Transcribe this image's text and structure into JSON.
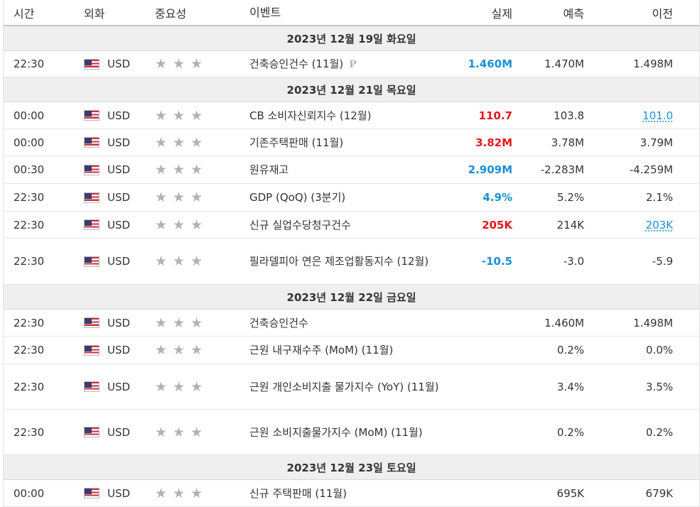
{
  "headers": {
    "time": "시간",
    "currency": "외화",
    "importance": "중요성",
    "event": "이벤트",
    "actual": "실제",
    "forecast": "예측",
    "previous": "이전"
  },
  "days": [
    "2023년 12월 19일 화요일",
    "2023년 12월 21일 목요일",
    "2023년 12월 22일 금요일",
    "2023년 12월 23일 토요일"
  ],
  "events": [
    {
      "time": "22:30",
      "currency": "USD",
      "event": "건축승인건수 (11월)",
      "preliminary": "P",
      "actual": "1.460M",
      "actual_color": "blue",
      "forecast": "1.470M",
      "previous": "1.498M"
    },
    {
      "time": "00:00",
      "currency": "USD",
      "event": "CB 소비자신뢰지수 (12월)",
      "actual": "110.7",
      "actual_color": "red",
      "forecast": "103.8",
      "previous": "101.0",
      "previous_revised": true
    },
    {
      "time": "00:00",
      "currency": "USD",
      "event": "기존주택판매 (11월)",
      "actual": "3.82M",
      "actual_color": "red",
      "forecast": "3.78M",
      "previous": "3.79M"
    },
    {
      "time": "00:30",
      "currency": "USD",
      "event": "원유재고",
      "actual": "2.909M",
      "actual_color": "blue",
      "forecast": "-2.283M",
      "previous": "-4.259M"
    },
    {
      "time": "22:30",
      "currency": "USD",
      "event": "GDP (QoQ) (3분기)",
      "actual": "4.9%",
      "actual_color": "blue",
      "forecast": "5.2%",
      "previous": "2.1%"
    },
    {
      "time": "22:30",
      "currency": "USD",
      "event": "신규 실업수당청구건수",
      "actual": "205K",
      "actual_color": "red",
      "forecast": "214K",
      "previous": "203K",
      "previous_revised": true
    },
    {
      "time": "22:30",
      "currency": "USD",
      "event": "필라델피아 연은 제조업활동지수 (12월)",
      "actual": "-10.5",
      "actual_color": "blue",
      "forecast": "-3.0",
      "previous": "-5.9"
    },
    {
      "time": "22:30",
      "currency": "USD",
      "event": "건축승인건수",
      "actual": "",
      "forecast": "1.460M",
      "previous": "1.498M"
    },
    {
      "time": "22:30",
      "currency": "USD",
      "event": "근원 내구재수주 (MoM) (11월)",
      "actual": "",
      "forecast": "0.2%",
      "previous": "0.0%"
    },
    {
      "time": "22:30",
      "currency": "USD",
      "event": "근원 개인소비지출 물가지수 (YoY) (11월)",
      "actual": "",
      "forecast": "3.4%",
      "previous": "3.5%"
    },
    {
      "time": "22:30",
      "currency": "USD",
      "event": "근원 소비지출물가지수 (MoM) (11월)",
      "actual": "",
      "forecast": "0.2%",
      "previous": "0.2%"
    },
    {
      "time": "00:00",
      "currency": "USD",
      "event": "신규 주택판매 (11월)",
      "actual": "",
      "forecast": "695K",
      "previous": "679K"
    }
  ],
  "importance_stars": "★",
  "colors": {
    "blue": "#1a8fd8",
    "red": "#e6161b",
    "day_bg": "#efefef"
  },
  "icons": {
    "flag": "us-flag-icon",
    "star": "star-icon",
    "preliminary": "preliminary-p-icon"
  }
}
